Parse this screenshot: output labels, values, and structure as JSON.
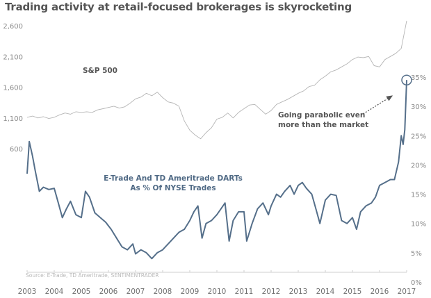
{
  "chart_data": {
    "type": "line",
    "title": "Trading activity at retail-focused brokerages is skyrocketing",
    "source": "Source: E-Trade, TD Ameritrade, SENTIMENTRADER",
    "x_ticks": [
      "2003",
      "2004",
      "2005",
      "2006",
      "2007",
      "2008",
      "2009",
      "2010",
      "2011",
      "2012",
      "2013",
      "2014",
      "2015",
      "2016",
      "2017"
    ],
    "xlim": [
      2003,
      2017
    ],
    "left_axis": {
      "ticks": [
        600,
        1100,
        1600,
        2100,
        2600
      ],
      "tick_labels": [
        "600",
        "1,100",
        "1,600",
        "2,100",
        "2,600"
      ],
      "series": "S&P 500"
    },
    "right_axis": {
      "ticks": [
        0,
        5,
        10,
        15,
        20,
        25,
        30,
        35
      ],
      "tick_labels": [
        "0%",
        "5%",
        "10%",
        "15%",
        "20%",
        "25%",
        "30%",
        "35%"
      ],
      "series": "E-Trade And TD Ameritrade DARTs As % Of NYSE Trades"
    },
    "grid": false,
    "annotations": {
      "sp_label": "S&P 500",
      "darts_label_line1": "E-Trade And TD Ameritrade DARTs",
      "darts_label_line2": "As % Of NYSE Trades",
      "callout_line1": "Going parabolic even",
      "callout_line2": "more than the market"
    },
    "series": [
      {
        "name": "S&P 500",
        "axis": "left",
        "color": "#b5b5b5",
        "x": [
          2003.0,
          2003.2,
          2003.4,
          2003.6,
          2003.8,
          2004.0,
          2004.2,
          2004.4,
          2004.6,
          2004.8,
          2005.0,
          2005.2,
          2005.4,
          2005.6,
          2005.8,
          2006.0,
          2006.2,
          2006.4,
          2006.6,
          2006.8,
          2007.0,
          2007.2,
          2007.4,
          2007.6,
          2007.8,
          2008.0,
          2008.2,
          2008.4,
          2008.6,
          2008.8,
          2009.0,
          2009.2,
          2009.4,
          2009.6,
          2009.8,
          2010.0,
          2010.2,
          2010.4,
          2010.6,
          2010.8,
          2011.0,
          2011.2,
          2011.4,
          2011.6,
          2011.8,
          2012.0,
          2012.2,
          2012.4,
          2012.6,
          2012.8,
          2013.0,
          2013.2,
          2013.4,
          2013.6,
          2013.8,
          2014.0,
          2014.2,
          2014.4,
          2014.6,
          2014.8,
          2015.0,
          2015.2,
          2015.4,
          2015.6,
          2015.8,
          2016.0,
          2016.2,
          2016.4,
          2016.6,
          2016.8,
          2017.0
        ],
        "values": [
          1110,
          1130,
          1100,
          1120,
          1090,
          1110,
          1150,
          1180,
          1160,
          1200,
          1190,
          1200,
          1190,
          1230,
          1250,
          1270,
          1290,
          1260,
          1280,
          1340,
          1410,
          1440,
          1500,
          1460,
          1520,
          1430,
          1360,
          1340,
          1290,
          1050,
          900,
          820,
          760,
          860,
          940,
          1080,
          1110,
          1180,
          1100,
          1190,
          1250,
          1310,
          1320,
          1240,
          1160,
          1220,
          1320,
          1360,
          1400,
          1450,
          1500,
          1540,
          1610,
          1630,
          1720,
          1780,
          1850,
          1880,
          1930,
          1980,
          2050,
          2090,
          2080,
          2100,
          1950,
          1930,
          2050,
          2100,
          2150,
          2230,
          2680
        ],
        "values_note": "approximate, read from left axis"
      },
      {
        "name": "E-Trade And TD Ameritrade DARTs As % Of NYSE Trades",
        "axis": "right",
        "color": "#556f8a",
        "x": [
          2003.0,
          2003.08,
          2003.2,
          2003.3,
          2003.45,
          2003.6,
          2003.8,
          2004.0,
          2004.15,
          2004.3,
          2004.45,
          2004.6,
          2004.8,
          2005.0,
          2005.15,
          2005.3,
          2005.5,
          2005.7,
          2005.9,
          2006.1,
          2006.3,
          2006.5,
          2006.7,
          2006.9,
          2007.0,
          2007.2,
          2007.4,
          2007.6,
          2007.8,
          2008.0,
          2008.2,
          2008.4,
          2008.6,
          2008.8,
          2009.0,
          2009.15,
          2009.3,
          2009.45,
          2009.6,
          2009.8,
          2010.0,
          2010.15,
          2010.3,
          2010.45,
          2010.6,
          2010.8,
          2011.0,
          2011.1,
          2011.3,
          2011.5,
          2011.7,
          2011.9,
          2012.0,
          2012.2,
          2012.35,
          2012.5,
          2012.7,
          2012.85,
          2013.0,
          2013.15,
          2013.3,
          2013.5,
          2013.65,
          2013.8,
          2014.0,
          2014.2,
          2014.4,
          2014.6,
          2014.8,
          2015.0,
          2015.15,
          2015.3,
          2015.5,
          2015.7,
          2015.85,
          2016.0,
          2016.2,
          2016.4,
          2016.55,
          2016.7,
          2016.8,
          2016.87,
          2016.93,
          2017.0
        ],
        "values": [
          18.5,
          24.0,
          21.5,
          19.0,
          15.5,
          16.2,
          15.8,
          16.0,
          13.5,
          11.0,
          12.5,
          13.8,
          11.5,
          11.0,
          15.5,
          14.5,
          11.8,
          11.0,
          10.2,
          9.0,
          7.5,
          6.0,
          5.5,
          6.5,
          4.8,
          5.5,
          5.0,
          4.0,
          5.0,
          5.5,
          6.5,
          7.5,
          8.5,
          9.0,
          10.5,
          12.0,
          13.0,
          7.5,
          10.0,
          10.5,
          11.5,
          12.5,
          13.5,
          7.0,
          10.5,
          12.0,
          12.0,
          7.0,
          10.0,
          12.5,
          13.5,
          11.5,
          13.0,
          15.0,
          14.5,
          15.5,
          16.5,
          15.0,
          16.5,
          17.0,
          16.0,
          15.0,
          12.5,
          10.0,
          14.0,
          15.0,
          14.8,
          10.5,
          10.0,
          11.0,
          9.0,
          12.0,
          13.0,
          13.5,
          14.5,
          16.5,
          17.0,
          17.5,
          17.5,
          20.5,
          25.0,
          23.5,
          26.0,
          34.5
        ],
        "values_note": "approximate, read from right axis (%)"
      }
    ],
    "highlight": {
      "series": "E-Trade And TD Ameritrade DARTs As % Of NYSE Trades",
      "x": 2017.0,
      "value": 34.5,
      "marker": "circle"
    }
  }
}
